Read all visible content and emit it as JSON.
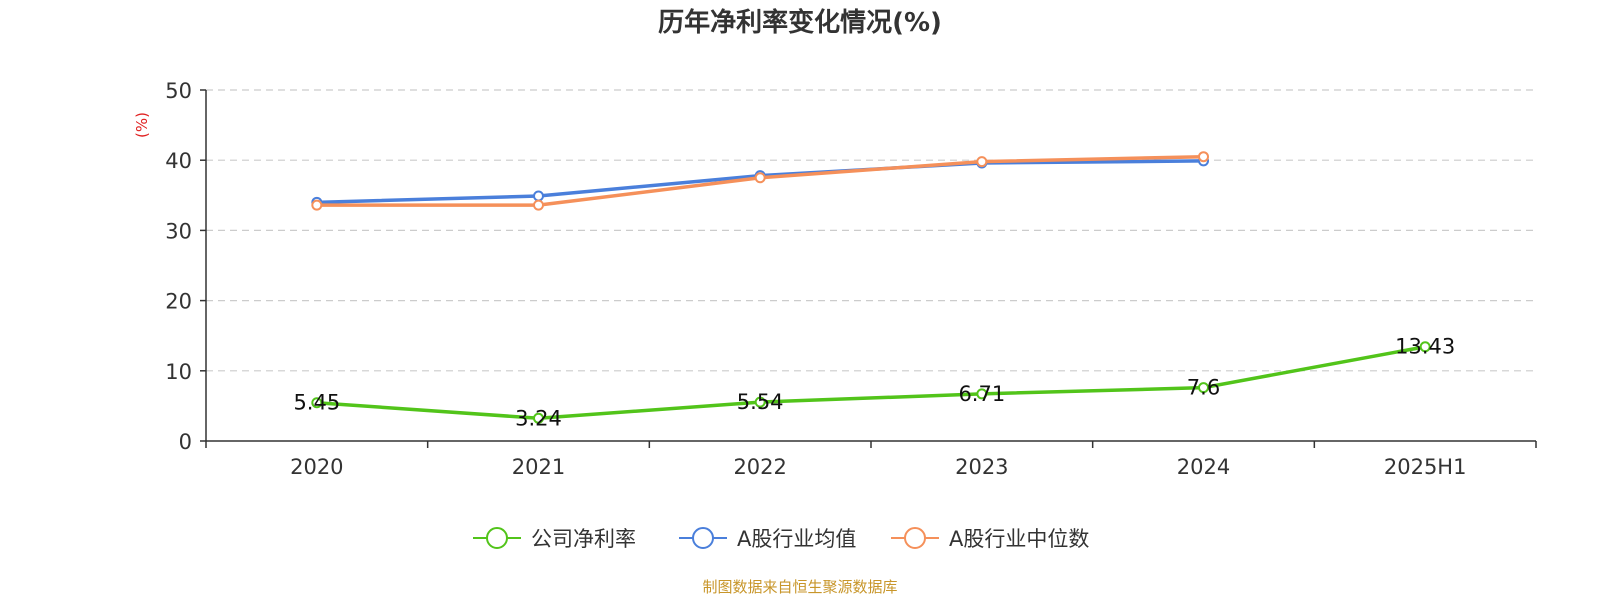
{
  "chart_data": {
    "type": "line",
    "title": "历年净利率变化情况(%)",
    "ylabel": "(%)",
    "xlabel": "",
    "categories": [
      "2020",
      "2021",
      "2022",
      "2023",
      "2024",
      "2025H1"
    ],
    "ylim": [
      0,
      50
    ],
    "yticks": [
      "0",
      "10",
      "20",
      "30",
      "40",
      "50"
    ],
    "grid": true,
    "legend_position": "bottom-center",
    "series": [
      {
        "name": "公司净利率",
        "color": "#52c41a",
        "values": [
          5.45,
          3.24,
          5.54,
          6.71,
          7.6,
          13.43
        ],
        "labels": [
          "5.45",
          "3.24",
          "5.54",
          "6.71",
          "7.6",
          "13.43"
        ]
      },
      {
        "name": "A股行业均值",
        "color": "#4a7fdb",
        "values": [
          34.0,
          34.9,
          37.8,
          39.6,
          39.9,
          null
        ]
      },
      {
        "name": "A股行业中位数",
        "color": "#f5905a",
        "values": [
          33.6,
          33.6,
          37.5,
          39.8,
          40.5,
          null
        ]
      }
    ]
  },
  "source": "制图数据来自恒生聚源数据库",
  "colors": {
    "axis": "#333333",
    "grid": "#cccccc",
    "ylabel": "#e02020",
    "source": "#c8962a"
  }
}
